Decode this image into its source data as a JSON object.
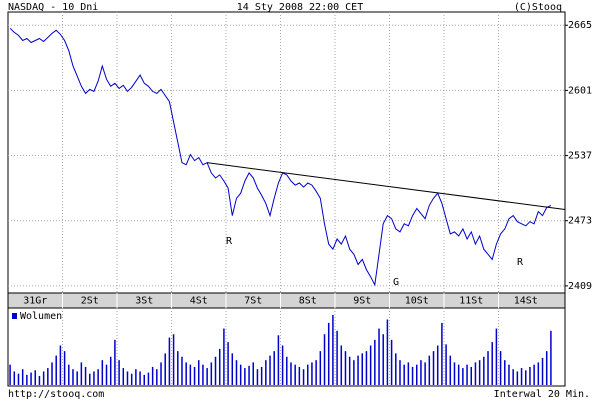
{
  "chart_data": {
    "type": "line",
    "header": {
      "left": "NASDAQ - 10 Dni",
      "center": "14 Sty 2008 22:00 CET",
      "right": "(C)Stooq"
    },
    "footer": {
      "left": "http://stooq.com",
      "right": "Interwal 20 Min."
    },
    "color": "#0000cc",
    "ylim": [
      2402,
      2678
    ],
    "yticks": [
      2409,
      2473,
      2537,
      2601,
      2665
    ],
    "grid": true,
    "days": [
      {
        "label": "31Gr",
        "values": [
          2662,
          2658,
          2655,
          2650,
          2652,
          2648,
          2650,
          2652,
          2649,
          2653,
          2657,
          2660,
          2656
        ],
        "volume": [
          18,
          12,
          10,
          14,
          9,
          11,
          13,
          8,
          12,
          15,
          20,
          26,
          35
        ]
      },
      {
        "label": "2St",
        "values": [
          2650,
          2640,
          2625,
          2615,
          2605,
          2598,
          2602,
          2600,
          2610,
          2625,
          2612,
          2605,
          2608
        ],
        "volume": [
          30,
          18,
          14,
          12,
          20,
          16,
          10,
          12,
          14,
          22,
          18,
          25,
          40
        ]
      },
      {
        "label": "3St",
        "values": [
          2603,
          2606,
          2600,
          2604,
          2610,
          2616,
          2608,
          2605,
          2600,
          2598,
          2602,
          2596,
          2590
        ],
        "volume": [
          22,
          15,
          12,
          10,
          14,
          12,
          9,
          11,
          16,
          14,
          20,
          28,
          42
        ]
      },
      {
        "label": "4St",
        "values": [
          2570,
          2550,
          2530,
          2528,
          2538,
          2532,
          2535,
          2528,
          2530,
          2520,
          2515,
          2518,
          2512
        ],
        "volume": [
          45,
          30,
          25,
          20,
          18,
          16,
          22,
          18,
          15,
          20,
          25,
          32,
          50
        ]
      },
      {
        "label": "7St",
        "values": [
          2505,
          2478,
          2495,
          2500,
          2512,
          2520,
          2515,
          2505,
          2498,
          2490,
          2478,
          2495,
          2510
        ],
        "volume": [
          38,
          28,
          22,
          18,
          15,
          17,
          20,
          14,
          16,
          22,
          26,
          30,
          44
        ]
      },
      {
        "label": "8St",
        "values": [
          2520,
          2518,
          2512,
          2508,
          2510,
          2506,
          2510,
          2508,
          2502,
          2495,
          2470,
          2450,
          2445
        ],
        "volume": [
          35,
          25,
          20,
          18,
          16,
          14,
          18,
          20,
          22,
          30,
          45,
          55,
          62
        ]
      },
      {
        "label": "9St",
        "values": [
          2455,
          2450,
          2458,
          2445,
          2440,
          2430,
          2435,
          2425,
          2418,
          2410,
          2440,
          2470,
          2478
        ],
        "volume": [
          48,
          35,
          30,
          25,
          22,
          26,
          28,
          30,
          35,
          40,
          50,
          45,
          58
        ]
      },
      {
        "label": "10St",
        "values": [
          2475,
          2465,
          2462,
          2470,
          2468,
          2478,
          2485,
          2480,
          2475,
          2488,
          2495,
          2500,
          2490
        ],
        "volume": [
          40,
          28,
          22,
          18,
          20,
          16,
          18,
          22,
          20,
          26,
          30,
          35,
          55
        ]
      },
      {
        "label": "11St",
        "values": [
          2475,
          2460,
          2462,
          2458,
          2465,
          2455,
          2462,
          2450,
          2458,
          2445,
          2440,
          2435,
          2450
        ],
        "volume": [
          36,
          26,
          20,
          18,
          15,
          18,
          16,
          20,
          22,
          25,
          30,
          38,
          50
        ]
      },
      {
        "label": "14St",
        "values": [
          2460,
          2465,
          2475,
          2478,
          2472,
          2470,
          2468,
          2472,
          2470,
          2482,
          2478,
          2486,
          2488
        ],
        "volume": [
          30,
          22,
          18,
          14,
          12,
          15,
          13,
          16,
          18,
          20,
          24,
          30,
          48
        ]
      }
    ],
    "volume_label": "Wolumen",
    "trendline": [
      2530,
      2484
    ],
    "annotations": [
      {
        "text": "R"
      },
      {
        "text": "G"
      },
      {
        "text": "R"
      }
    ]
  }
}
